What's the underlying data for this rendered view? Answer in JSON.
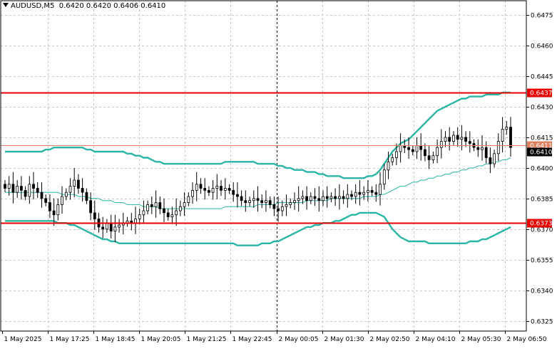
{
  "header": {
    "symbol": "AUDUSD,M5",
    "ohlc": "0.6420 0.6420 0.6406 0.6410"
  },
  "colors": {
    "background": "#ffffff",
    "grid": "#c8c8c8",
    "candle": "#000000",
    "band": "#2ab5a5",
    "level_line": "#e60000",
    "price_line": "#e08060",
    "current_price_bg": "#000000"
  },
  "chart_data": {
    "type": "candlestick",
    "symbol": "AUDUSD",
    "timeframe": "M5",
    "grid": true,
    "ylim": [
      0.632,
      0.6482
    ],
    "y_ticks": [
      "0.6475",
      "0.6460",
      "0.6445",
      "0.6430",
      "0.6415",
      "0.6400",
      "0.6385",
      "0.6370",
      "0.6355",
      "0.6340",
      "0.6325"
    ],
    "x_ticks": [
      "1 May 2025",
      "1 May 17:25",
      "1 May 18:45",
      "1 May 20:05",
      "1 May 21:25",
      "1 May 22:45",
      "2 May 00:05",
      "2 May 01:30",
      "2 May 02:50",
      "2 May 04:10",
      "2 May 05:30",
      "2 May 06:50"
    ],
    "period_separator": "2 May 00:05",
    "levels": [
      {
        "value": 0.6437,
        "label": "0.6437"
      },
      {
        "value": 0.6373,
        "label": "0.6373"
      }
    ],
    "price_line": {
      "value": 0.6411,
      "label": "0.6411"
    },
    "current_price": {
      "value": 0.641,
      "label": "0.6410"
    },
    "close": [
      0.639,
      0.6392,
      0.6388,
      0.6391,
      0.6389,
      0.6386,
      0.6392,
      0.639,
      0.6388,
      0.6385,
      0.6383,
      0.6379,
      0.6377,
      0.6382,
      0.6386,
      0.6388,
      0.6391,
      0.6394,
      0.639,
      0.6388,
      0.6384,
      0.6378,
      0.6375,
      0.6371,
      0.637,
      0.6373,
      0.6369,
      0.6371,
      0.6372,
      0.6373,
      0.6374,
      0.6373,
      0.6375,
      0.6377,
      0.6379,
      0.6382,
      0.6381,
      0.6383,
      0.638,
      0.6378,
      0.6376,
      0.6377,
      0.6379,
      0.6381,
      0.6383,
      0.6386,
      0.6389,
      0.6392,
      0.639,
      0.6389,
      0.6388,
      0.639,
      0.6391,
      0.6389,
      0.639,
      0.6389,
      0.6387,
      0.6386,
      0.6384,
      0.6383,
      0.6384,
      0.6385,
      0.6384,
      0.6383,
      0.6384,
      0.6382,
      0.638,
      0.6379,
      0.6381,
      0.6382,
      0.6383,
      0.6384,
      0.6385,
      0.6386,
      0.6384,
      0.6386,
      0.6385,
      0.6384,
      0.6386,
      0.6385,
      0.6386,
      0.6385,
      0.6386,
      0.6385,
      0.6387,
      0.6386,
      0.6388,
      0.6387,
      0.6388,
      0.6389,
      0.6388,
      0.6387,
      0.6392,
      0.6399,
      0.6403,
      0.6405,
      0.6408,
      0.6411,
      0.641,
      0.6409,
      0.6408,
      0.6411,
      0.6409,
      0.6406,
      0.6404,
      0.6406,
      0.641,
      0.6413,
      0.6415,
      0.6413,
      0.6416,
      0.6414,
      0.6415,
      0.6413,
      0.6412,
      0.641,
      0.6409,
      0.641,
      0.6405,
      0.6402,
      0.6407,
      0.6413,
      0.6419,
      0.642,
      0.641
    ],
    "band_upper": [
      0.6408,
      0.6408,
      0.6408,
      0.6408,
      0.6408,
      0.6408,
      0.6408,
      0.6408,
      0.6408,
      0.6408,
      0.6409,
      0.6409,
      0.641,
      0.641,
      0.641,
      0.641,
      0.641,
      0.641,
      0.641,
      0.641,
      0.6409,
      0.6409,
      0.6408,
      0.6408,
      0.6408,
      0.6408,
      0.6408,
      0.6408,
      0.6408,
      0.6408,
      0.6407,
      0.6407,
      0.6406,
      0.6406,
      0.6405,
      0.6405,
      0.6404,
      0.6403,
      0.6403,
      0.6402,
      0.6402,
      0.6402,
      0.6402,
      0.6402,
      0.6402,
      0.6402,
      0.6402,
      0.6402,
      0.6402,
      0.6402,
      0.6402,
      0.6402,
      0.6402,
      0.6402,
      0.6403,
      0.6403,
      0.6403,
      0.6403,
      0.6403,
      0.6403,
      0.6403,
      0.6403,
      0.6402,
      0.6402,
      0.6402,
      0.6402,
      0.6402,
      0.6401,
      0.6401,
      0.64,
      0.64,
      0.6399,
      0.6399,
      0.6399,
      0.6398,
      0.6398,
      0.6398,
      0.6397,
      0.6397,
      0.6396,
      0.6396,
      0.6396,
      0.6396,
      0.6395,
      0.6395,
      0.6395,
      0.6395,
      0.6395,
      0.6395,
      0.6396,
      0.6396,
      0.6397,
      0.6399,
      0.6402,
      0.6405,
      0.6408,
      0.641,
      0.6412,
      0.6413,
      0.6414,
      0.6416,
      0.6418,
      0.642,
      0.6422,
      0.6424,
      0.6426,
      0.6428,
      0.6429,
      0.643,
      0.6431,
      0.6432,
      0.6433,
      0.6434,
      0.6434,
      0.6435,
      0.6435,
      0.6435,
      0.6435,
      0.6436,
      0.6436,
      0.6436,
      0.6436,
      0.6437,
      0.6437,
      0.6437
    ],
    "band_middle": [
      0.6388,
      0.6388,
      0.6388,
      0.6388,
      0.6388,
      0.6388,
      0.6388,
      0.6388,
      0.6388,
      0.6388,
      0.6388,
      0.6388,
      0.6388,
      0.6388,
      0.6387,
      0.6387,
      0.6387,
      0.6387,
      0.6386,
      0.6386,
      0.6386,
      0.6385,
      0.6385,
      0.6385,
      0.6384,
      0.6384,
      0.6384,
      0.6383,
      0.6383,
      0.6383,
      0.6382,
      0.6382,
      0.6382,
      0.6382,
      0.6381,
      0.6381,
      0.6381,
      0.6381,
      0.638,
      0.638,
      0.638,
      0.638,
      0.638,
      0.638,
      0.638,
      0.638,
      0.638,
      0.638,
      0.638,
      0.638,
      0.638,
      0.638,
      0.638,
      0.638,
      0.6381,
      0.6381,
      0.6381,
      0.6381,
      0.6381,
      0.6381,
      0.6381,
      0.6381,
      0.6382,
      0.6382,
      0.6382,
      0.6382,
      0.6382,
      0.6383,
      0.6383,
      0.6383,
      0.6383,
      0.6383,
      0.6383,
      0.6383,
      0.6384,
      0.6384,
      0.6384,
      0.6384,
      0.6384,
      0.6384,
      0.6385,
      0.6385,
      0.6385,
      0.6385,
      0.6385,
      0.6385,
      0.6385,
      0.6385,
      0.6386,
      0.6386,
      0.6386,
      0.6386,
      0.6387,
      0.6387,
      0.6388,
      0.6389,
      0.639,
      0.6391,
      0.6391,
      0.6392,
      0.6393,
      0.6393,
      0.6394,
      0.6394,
      0.6395,
      0.6395,
      0.6396,
      0.6396,
      0.6397,
      0.6397,
      0.6398,
      0.6398,
      0.6399,
      0.6399,
      0.64,
      0.64,
      0.6401,
      0.6401,
      0.6402,
      0.6402,
      0.6403,
      0.6403,
      0.6404,
      0.6404,
      0.6405
    ],
    "band_lower": [
      0.6374,
      0.6374,
      0.6374,
      0.6374,
      0.6374,
      0.6374,
      0.6374,
      0.6374,
      0.6374,
      0.6374,
      0.6374,
      0.6374,
      0.6374,
      0.6373,
      0.6373,
      0.6373,
      0.6372,
      0.6372,
      0.6371,
      0.637,
      0.6369,
      0.6368,
      0.6367,
      0.6366,
      0.6365,
      0.6365,
      0.6364,
      0.6364,
      0.6363,
      0.6363,
      0.6363,
      0.6363,
      0.6363,
      0.6363,
      0.6363,
      0.6363,
      0.6363,
      0.6363,
      0.6363,
      0.6363,
      0.6363,
      0.6363,
      0.6363,
      0.6363,
      0.6363,
      0.6363,
      0.6363,
      0.6363,
      0.6363,
      0.6363,
      0.6363,
      0.6363,
      0.6363,
      0.6363,
      0.6363,
      0.6363,
      0.6363,
      0.6362,
      0.6362,
      0.6362,
      0.6362,
      0.6362,
      0.6362,
      0.6363,
      0.6363,
      0.6363,
      0.6364,
      0.6364,
      0.6365,
      0.6366,
      0.6367,
      0.6368,
      0.6369,
      0.637,
      0.6371,
      0.6371,
      0.6372,
      0.6372,
      0.6373,
      0.6373,
      0.6373,
      0.6374,
      0.6374,
      0.6375,
      0.6376,
      0.6377,
      0.6377,
      0.6378,
      0.6378,
      0.6378,
      0.6378,
      0.6378,
      0.6377,
      0.6376,
      0.6373,
      0.637,
      0.6368,
      0.6366,
      0.6365,
      0.6364,
      0.6364,
      0.6364,
      0.6364,
      0.6364,
      0.6363,
      0.6363,
      0.6363,
      0.6363,
      0.6363,
      0.6363,
      0.6363,
      0.6363,
      0.6363,
      0.6363,
      0.6364,
      0.6364,
      0.6364,
      0.6365,
      0.6365,
      0.6366,
      0.6367,
      0.6368,
      0.6369,
      0.637,
      0.6371
    ]
  }
}
